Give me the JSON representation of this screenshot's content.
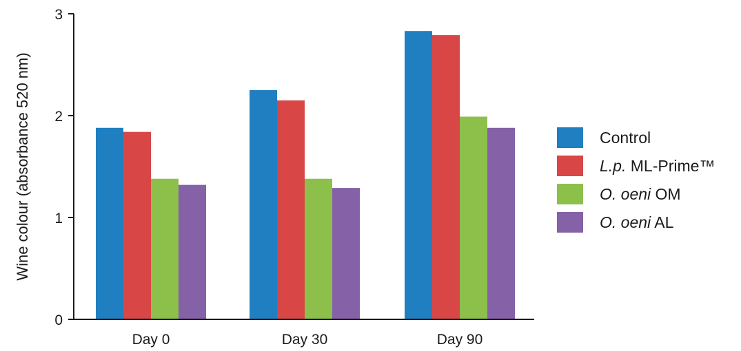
{
  "chart_data": {
    "type": "bar",
    "title": "",
    "xlabel": "",
    "ylabel": "Wine colour (absorbance 520 nm)",
    "ylim": [
      0,
      3
    ],
    "yticks": [
      "0",
      "1",
      "2",
      "3"
    ],
    "categories": [
      "Day 0",
      "Day 30",
      "Day 90"
    ],
    "series": [
      {
        "name": "Control",
        "name_italic": "",
        "name_rest": "Control",
        "color": "#1f7fc1",
        "values": [
          1.88,
          2.25,
          2.83
        ]
      },
      {
        "name": "L.p. ML-Prime™",
        "name_italic": "L.p.",
        "name_rest": " ML-Prime™",
        "color": "#d94646",
        "values": [
          1.84,
          2.15,
          2.79
        ]
      },
      {
        "name": "O. oeni OM",
        "name_italic": "O. oeni",
        "name_rest": " OM",
        "color": "#8cc04b",
        "values": [
          1.38,
          1.38,
          1.99
        ]
      },
      {
        "name": "O. oeni AL",
        "name_italic": "O. oeni",
        "name_rest": " AL",
        "color": "#8561a8",
        "values": [
          1.32,
          1.29,
          1.88
        ]
      }
    ],
    "grid": false,
    "legend_position": "right"
  }
}
